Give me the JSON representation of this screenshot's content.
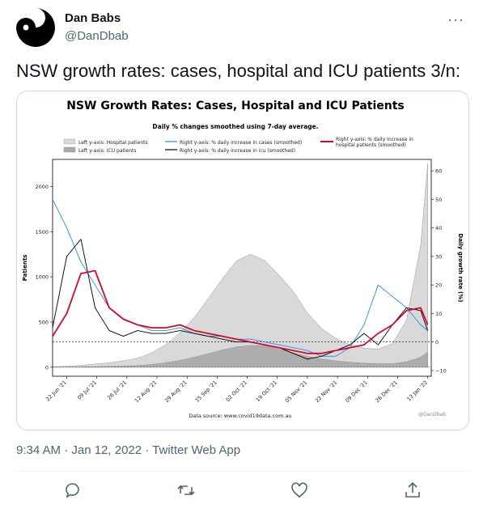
{
  "author": {
    "name": "Dan Babs",
    "handle": "@DanDbab"
  },
  "tweet": {
    "text": "NSW growth rates: cases, hospital and ICU patients 3/n:"
  },
  "meta": {
    "timestamp": "9:34 AM · Jan 12, 2022 · Twitter Web App"
  },
  "icons": {
    "more": "more-icon",
    "reply": "reply-icon",
    "retweet": "retweet-icon",
    "like": "like-icon",
    "share": "share-icon"
  },
  "colors": {
    "hospital": "#d9d9d9",
    "icu": "#a9a9a9",
    "cases": "#2c88e8",
    "icu_line": "#000000",
    "hosp_line": "#d10a2c"
  },
  "chart_data": {
    "type": "line",
    "title": "NSW Growth Rates: Cases, Hospital and ICU Patients",
    "subtitle": "Daily % changes smoothed using 7-day average.",
    "ylabel": "Patients",
    "y2label": "Daily growth rate (%)",
    "source": "Data source: www.covid19data.com.au",
    "watermark": "@DanDbab",
    "legend": [
      "Left y-axis: Hospital patients",
      "Left y-axis: ICU patients",
      "Right y-axis: % daily increase in cases (smoothed)",
      "Right y-axis: % daily increase in icu (smoothed)",
      "Right y-axis: % daily increase in hospital patients (smoothed)"
    ],
    "ylim": [
      -100,
      2300
    ],
    "y2lim": [
      -12,
      64
    ],
    "yticks": [
      "0",
      "500",
      "1000",
      "1500",
      "2000"
    ],
    "y2ticks": [
      "−10",
      "0",
      "10",
      "20",
      "30",
      "40",
      "50",
      "60"
    ],
    "xticks": [
      "22 Jun '21",
      "09 Jul '21",
      "26 Jul '21",
      "12 Aug '21",
      "29 Aug '21",
      "15 Sep '21",
      "02 Oct '21",
      "19 Oct '21",
      "05 Nov '21",
      "22 Nov '21",
      "09 Dec '21",
      "26 Dec '21",
      "12 Jan '22"
    ],
    "x": [
      0,
      8,
      16,
      24,
      32,
      40,
      48,
      56,
      64,
      72,
      80,
      88,
      96,
      104,
      112,
      120,
      128,
      136,
      144,
      152,
      160,
      168,
      176,
      184,
      192,
      200,
      208,
      212
    ],
    "series": [
      {
        "name": "Left y-axis: Hospital patients",
        "axis": "left",
        "values": [
          5,
          10,
          20,
          35,
          50,
          70,
          100,
          160,
          250,
          380,
          550,
          760,
          980,
          1180,
          1250,
          1180,
          1020,
          840,
          600,
          430,
          320,
          250,
          210,
          200,
          260,
          520,
          1350,
          2250
        ]
      },
      {
        "name": "Left y-axis: ICU patients",
        "axis": "left",
        "values": [
          1,
          2,
          4,
          6,
          9,
          12,
          18,
          30,
          50,
          75,
          110,
          150,
          190,
          225,
          240,
          235,
          200,
          160,
          120,
          90,
          70,
          55,
          45,
          38,
          40,
          60,
          110,
          170
        ]
      },
      {
        "name": "Right y-axis: % daily increase in cases (smoothed)",
        "axis": "right",
        "values": [
          50,
          40,
          28,
          20,
          12,
          8,
          6,
          4,
          4,
          5,
          3,
          2,
          2,
          1,
          1,
          0,
          -1,
          -2,
          -3,
          -5,
          -5,
          -2,
          6,
          20,
          16,
          12,
          6,
          4
        ]
      },
      {
        "name": "Right y-axis: % daily increase in icu (smoothed)",
        "axis": "right",
        "values": [
          5,
          30,
          36,
          12,
          4,
          2,
          4,
          3,
          3,
          4,
          3,
          2,
          1,
          0,
          0,
          -1,
          -2,
          -4,
          -6,
          -5,
          -3,
          -1,
          3,
          -1,
          6,
          12,
          11,
          4
        ]
      },
      {
        "name": "Right y-axis: % daily increase in hospital patients (smoothed)",
        "axis": "right",
        "values": [
          2,
          10,
          24,
          25,
          12,
          8,
          6,
          5,
          5,
          6,
          4,
          3,
          2,
          1,
          0,
          -1,
          -2,
          -3,
          -4,
          -4,
          -3,
          -2,
          -1,
          3,
          6,
          11,
          12,
          6
        ]
      }
    ]
  }
}
